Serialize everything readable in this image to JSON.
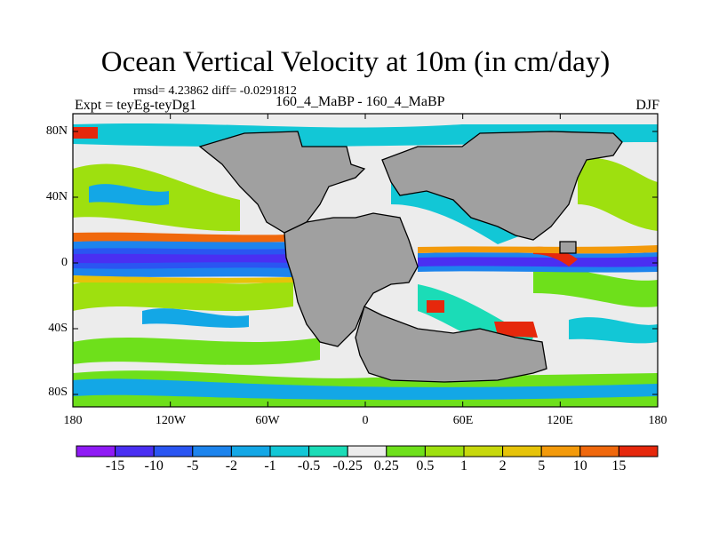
{
  "title": "Ocean Vertical Velocity at 10m (in cm/day)",
  "stats": "rmsd= 4.23862 diff= -0.0291812",
  "left_label": "Expt = teyEg-teyDg1",
  "center_label": "160_4_MaBP - 160_4_MaBP",
  "right_label": "DJF",
  "y_ticks": [
    "80N",
    "40N",
    "0",
    "40S",
    "80S"
  ],
  "x_ticks": [
    "180",
    "120W",
    "60W",
    "0",
    "60E",
    "120E",
    "180"
  ],
  "colorbar": {
    "colors": [
      "#8f1bf5",
      "#4a2ff2",
      "#2a55f2",
      "#1d84ed",
      "#13a7e6",
      "#12c7d6",
      "#1bdcb7",
      "#ececec",
      "#6ee01b",
      "#9ee00f",
      "#c7d80c",
      "#e6c309",
      "#f39a0b",
      "#f0680c",
      "#e6280c"
    ],
    "labels": [
      "-15",
      "-10",
      "-5",
      "-2",
      "-1",
      "-0.5",
      "-0.25",
      "0.25",
      "0.5",
      "1",
      "2",
      "5",
      "10",
      "15"
    ]
  },
  "land_color": "#a0a0a0"
}
